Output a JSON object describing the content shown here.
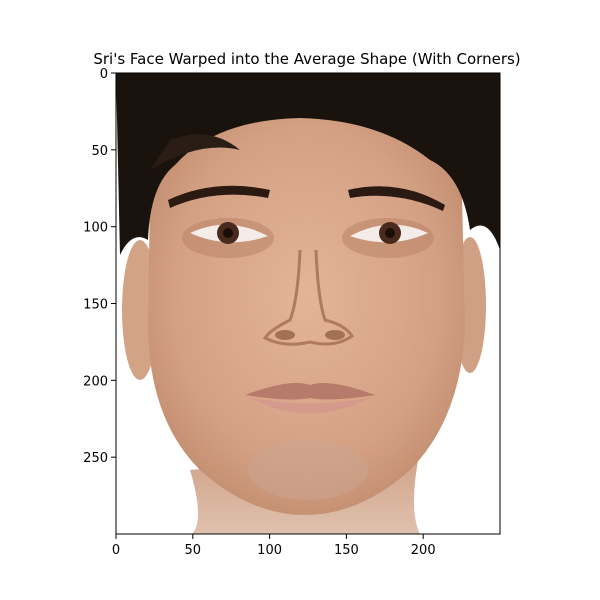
{
  "figure": {
    "title": "Sri's Face Warped into the Average Shape (With Corners)",
    "image_description": "warped human face photograph"
  },
  "chart_data": {
    "type": "image",
    "title": "Sri's Face Warped into the Average Shape (With Corners)",
    "xlabel": "",
    "ylabel": "",
    "xlim": [
      0,
      250
    ],
    "ylim": [
      300,
      0
    ],
    "x_ticks": [
      0,
      50,
      100,
      150,
      200
    ],
    "y_ticks": [
      0,
      50,
      100,
      150,
      200,
      250
    ],
    "grid": false,
    "legend": "none"
  },
  "colors": {
    "background": "#ffffff",
    "hair": "#1a120d",
    "skin": "#d9a98a",
    "skin_shadow": "#c48d6e",
    "lips": "#c88978",
    "eye_iris": "#4a2a1c"
  }
}
